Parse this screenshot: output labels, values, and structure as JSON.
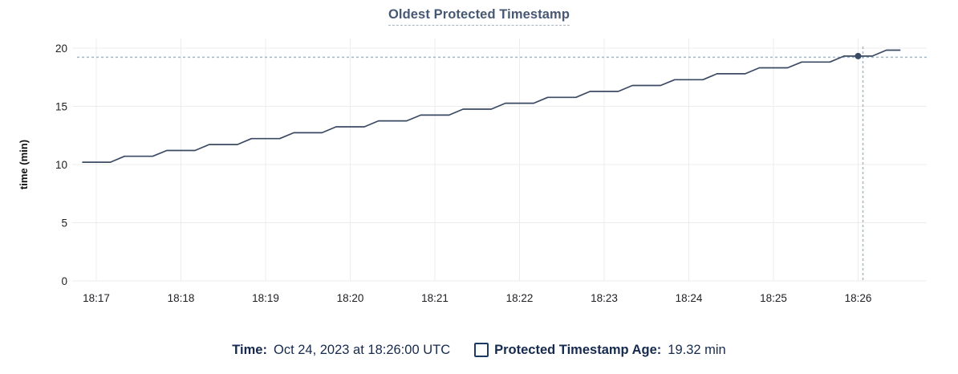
{
  "title": "Oldest Protected Timestamp",
  "colors": {
    "title": "#475872",
    "line": "#3b4a63",
    "grid": "#ececec",
    "crosshair": "#a4b7c6",
    "axis_text": "#202124",
    "footer_text": "#152a4e",
    "checkbox_border": "#1c3a63"
  },
  "tooltip": {
    "time_label": "Time:",
    "time_value": "Oct 24, 2023 at 18:26:00 UTC",
    "series_label": "Protected Timestamp Age:",
    "series_value": "19.32 min"
  },
  "chart_data": {
    "type": "line",
    "title": "Oldest Protected Timestamp",
    "xlabel": "",
    "ylabel": "time (min)",
    "ylim": [
      0,
      20
    ],
    "yticks": [
      0,
      5,
      10,
      15,
      20
    ],
    "xticks": [
      "18:17",
      "18:18",
      "18:19",
      "18:20",
      "18:21",
      "18:22",
      "18:23",
      "18:24",
      "18:25",
      "18:26"
    ],
    "x_start": "18:16:50",
    "x_end": "18:26:30",
    "grid": true,
    "legend_position": "bottom",
    "highlight": {
      "x": "18:26:00",
      "x_offset_s": 540,
      "value": 19.32,
      "unit": "min"
    },
    "series": [
      {
        "name": "Protected Timestamp Age",
        "unit": "min",
        "points": [
          [
            -10,
            10.2
          ],
          [
            0,
            10.2
          ],
          [
            10,
            10.2
          ],
          [
            20,
            10.71
          ],
          [
            30,
            10.71
          ],
          [
            40,
            10.71
          ],
          [
            50,
            11.21
          ],
          [
            60,
            11.21
          ],
          [
            70,
            11.21
          ],
          [
            80,
            11.72
          ],
          [
            90,
            11.72
          ],
          [
            100,
            11.72
          ],
          [
            110,
            12.23
          ],
          [
            120,
            12.23
          ],
          [
            130,
            12.23
          ],
          [
            140,
            12.73
          ],
          [
            150,
            12.73
          ],
          [
            160,
            12.73
          ],
          [
            170,
            13.24
          ],
          [
            180,
            13.24
          ],
          [
            190,
            13.24
          ],
          [
            200,
            13.75
          ],
          [
            210,
            13.75
          ],
          [
            220,
            13.75
          ],
          [
            230,
            14.25
          ],
          [
            240,
            14.25
          ],
          [
            250,
            14.25
          ],
          [
            260,
            14.76
          ],
          [
            270,
            14.76
          ],
          [
            280,
            14.76
          ],
          [
            290,
            15.27
          ],
          [
            300,
            15.27
          ],
          [
            310,
            15.27
          ],
          [
            320,
            15.77
          ],
          [
            330,
            15.77
          ],
          [
            340,
            15.77
          ],
          [
            350,
            16.28
          ],
          [
            360,
            16.28
          ],
          [
            370,
            16.28
          ],
          [
            380,
            16.79
          ],
          [
            390,
            16.79
          ],
          [
            400,
            16.79
          ],
          [
            410,
            17.29
          ],
          [
            420,
            17.29
          ],
          [
            430,
            17.29
          ],
          [
            440,
            17.8
          ],
          [
            450,
            17.8
          ],
          [
            460,
            17.8
          ],
          [
            470,
            18.31
          ],
          [
            480,
            18.31
          ],
          [
            490,
            18.31
          ],
          [
            500,
            18.81
          ],
          [
            510,
            18.81
          ],
          [
            520,
            18.81
          ],
          [
            530,
            19.32
          ],
          [
            540,
            19.32
          ],
          [
            550,
            19.32
          ],
          [
            560,
            19.83
          ],
          [
            570,
            19.83
          ]
        ]
      }
    ]
  }
}
